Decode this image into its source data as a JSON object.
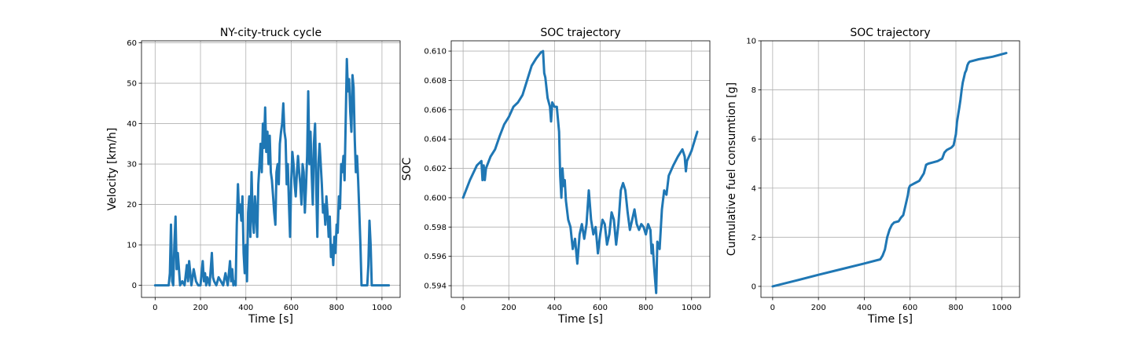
{
  "chart_data": [
    {
      "type": "line",
      "title": "NY-city-truck cycle",
      "xlabel": "Time [s]",
      "ylabel": "Velocity [km/h]",
      "xlim": [
        -60,
        1080
      ],
      "ylim": [
        -3,
        60.5
      ],
      "xticks": [
        0,
        200,
        400,
        600,
        800,
        1000
      ],
      "yticks": [
        0,
        10,
        20,
        30,
        40,
        50,
        60
      ],
      "ytick_labels": [
        "0",
        "10",
        "20",
        "30",
        "40",
        "50",
        "60"
      ],
      "grid": true,
      "color": "#1f77b4",
      "series": [
        {
          "x": [
            0,
            20,
            40,
            60,
            65,
            70,
            75,
            80,
            85,
            90,
            95,
            100,
            110,
            120,
            130,
            140,
            145,
            150,
            160,
            170,
            180,
            190,
            200,
            210,
            215,
            220,
            225,
            230,
            240,
            250,
            255,
            260,
            270,
            280,
            300,
            310,
            320,
            330,
            335,
            340,
            345,
            350,
            355,
            360,
            365,
            370,
            375,
            380,
            385,
            390,
            395,
            400,
            405,
            410,
            415,
            420,
            425,
            430,
            435,
            440,
            445,
            450,
            455,
            460,
            465,
            470,
            475,
            480,
            485,
            490,
            495,
            500,
            505,
            510,
            515,
            520,
            525,
            530,
            535,
            540,
            545,
            550,
            555,
            560,
            565,
            570,
            575,
            580,
            585,
            590,
            595,
            600,
            605,
            610,
            615,
            620,
            625,
            630,
            635,
            640,
            645,
            650,
            655,
            660,
            665,
            670,
            675,
            680,
            685,
            690,
            695,
            700,
            705,
            710,
            715,
            720,
            725,
            730,
            735,
            740,
            745,
            750,
            755,
            760,
            765,
            770,
            775,
            780,
            785,
            790,
            795,
            800,
            805,
            810,
            815,
            820,
            825,
            830,
            835,
            840,
            845,
            850,
            855,
            860,
            865,
            870,
            875,
            880,
            885,
            890,
            895,
            900,
            905,
            910,
            915,
            920,
            925,
            930,
            935,
            940,
            945,
            950,
            955,
            960,
            965,
            970,
            975,
            980,
            1000,
            1030
          ],
          "y": [
            0,
            0,
            0,
            0,
            3,
            15,
            1,
            0,
            10,
            17,
            4,
            8,
            0,
            1,
            0,
            5,
            1,
            6,
            0,
            4,
            1,
            0,
            0,
            6,
            1,
            3,
            0,
            2,
            0,
            8,
            2,
            1,
            0,
            2,
            0,
            3,
            0,
            6,
            1,
            4,
            0,
            1,
            0,
            15,
            25,
            18,
            20,
            16,
            22,
            8,
            3,
            10,
            1,
            18,
            22,
            12,
            28,
            17,
            13,
            22,
            18,
            12,
            25,
            30,
            35,
            28,
            40,
            34,
            44,
            33,
            38,
            30,
            37,
            28,
            26,
            22,
            18,
            15,
            28,
            30,
            25,
            35,
            38,
            40,
            45,
            38,
            36,
            25,
            30,
            20,
            12,
            26,
            33,
            30,
            25,
            22,
            28,
            32,
            28,
            25,
            20,
            30,
            28,
            18,
            24,
            32,
            48,
            30,
            38,
            28,
            20,
            35,
            40,
            25,
            12,
            30,
            35,
            30,
            25,
            18,
            20,
            15,
            22,
            18,
            12,
            17,
            7,
            10,
            5,
            12,
            8,
            15,
            13,
            22,
            19,
            30,
            28,
            32,
            26,
            40,
            56,
            48,
            51,
            43,
            38,
            52,
            49,
            36,
            28,
            32,
            26,
            18,
            10,
            0,
            0,
            0,
            0,
            0,
            0,
            5,
            16,
            10,
            0,
            0,
            0,
            0,
            0,
            0,
            0,
            0
          ],
          "name": ""
        }
      ]
    },
    {
      "type": "line",
      "title": "SOC trajectory",
      "xlabel": "Time [s]",
      "ylabel": "SOC",
      "xlim": [
        -52,
        1080
      ],
      "ylim": [
        0.5932,
        0.6107
      ],
      "xticks": [
        0,
        200,
        400,
        600,
        800,
        1000
      ],
      "yticks": [
        0.594,
        0.596,
        0.598,
        0.6,
        0.602,
        0.604,
        0.606,
        0.608,
        0.61
      ],
      "ytick_labels": [
        "0.594",
        "0.596",
        "0.598",
        "0.600",
        "0.602",
        "0.604",
        "0.606",
        "0.608",
        "0.610"
      ],
      "grid": true,
      "color": "#1f77b4",
      "series": [
        {
          "x": [
            0,
            30,
            60,
            80,
            85,
            90,
            95,
            100,
            120,
            140,
            160,
            180,
            200,
            220,
            240,
            260,
            280,
            300,
            320,
            340,
            350,
            355,
            360,
            370,
            380,
            385,
            390,
            400,
            410,
            420,
            425,
            430,
            435,
            440,
            445,
            450,
            460,
            470,
            480,
            490,
            500,
            510,
            520,
            530,
            540,
            550,
            560,
            570,
            580,
            590,
            600,
            610,
            620,
            630,
            640,
            650,
            660,
            670,
            680,
            690,
            700,
            710,
            720,
            730,
            740,
            750,
            760,
            770,
            780,
            790,
            800,
            810,
            820,
            825,
            830,
            835,
            840,
            845,
            850,
            860,
            870,
            880,
            890,
            900,
            920,
            940,
            960,
            970,
            975,
            980,
            1000,
            1025
          ],
          "y": [
            0.6,
            0.6012,
            0.6022,
            0.6025,
            0.6012,
            0.6022,
            0.6012,
            0.602,
            0.6028,
            0.6033,
            0.6042,
            0.605,
            0.6055,
            0.6062,
            0.6065,
            0.607,
            0.608,
            0.609,
            0.6095,
            0.6099,
            0.61,
            0.6085,
            0.6082,
            0.6068,
            0.6062,
            0.6052,
            0.6065,
            0.6062,
            0.6062,
            0.6045,
            0.6015,
            0.6,
            0.602,
            0.6008,
            0.6012,
            0.5998,
            0.5985,
            0.598,
            0.5965,
            0.5972,
            0.5955,
            0.5975,
            0.5982,
            0.5972,
            0.5982,
            0.6005,
            0.5985,
            0.5975,
            0.598,
            0.5962,
            0.5975,
            0.5985,
            0.5982,
            0.5968,
            0.5975,
            0.599,
            0.5985,
            0.5968,
            0.5982,
            0.6005,
            0.601,
            0.6005,
            0.599,
            0.5978,
            0.5985,
            0.5992,
            0.5982,
            0.5978,
            0.5982,
            0.598,
            0.5975,
            0.5982,
            0.5978,
            0.5962,
            0.5968,
            0.5955,
            0.5945,
            0.5935,
            0.597,
            0.5965,
            0.5992,
            0.6005,
            0.6002,
            0.6015,
            0.6022,
            0.6028,
            0.6033,
            0.6028,
            0.6018,
            0.6025,
            0.6032,
            0.6045
          ],
          "name": ""
        }
      ]
    },
    {
      "type": "line",
      "title": "SOC trajectory",
      "xlabel": "Time [s]",
      "ylabel": "Cumulative fuel consumtion [g]",
      "xlim": [
        -51,
        1078
      ],
      "ylim": [
        -0.45,
        10
      ],
      "xticks": [
        0,
        200,
        400,
        600,
        800,
        1000
      ],
      "yticks": [
        0,
        2,
        4,
        6,
        8,
        10
      ],
      "ytick_labels": [
        "0",
        "2",
        "4",
        "6",
        "8",
        "10"
      ],
      "grid": true,
      "color": "#1f77b4",
      "series": [
        {
          "x": [
            0,
            100,
            200,
            300,
            400,
            470,
            480,
            490,
            500,
            510,
            520,
            530,
            550,
            560,
            570,
            580,
            590,
            595,
            600,
            610,
            620,
            640,
            650,
            660,
            670,
            680,
            700,
            720,
            740,
            750,
            760,
            780,
            790,
            800,
            805,
            810,
            815,
            820,
            825,
            830,
            835,
            840,
            845,
            850,
            855,
            860,
            900,
            960,
            1020
          ],
          "y": [
            0,
            0.23,
            0.47,
            0.7,
            0.93,
            1.1,
            1.25,
            1.5,
            2.0,
            2.3,
            2.5,
            2.6,
            2.65,
            2.8,
            2.9,
            3.3,
            3.7,
            4.0,
            4.1,
            4.15,
            4.2,
            4.3,
            4.45,
            4.6,
            4.95,
            5.0,
            5.05,
            5.1,
            5.2,
            5.45,
            5.55,
            5.65,
            5.75,
            6.2,
            6.7,
            7.0,
            7.3,
            7.6,
            8.0,
            8.3,
            8.5,
            8.7,
            8.8,
            9.0,
            9.1,
            9.15,
            9.25,
            9.35,
            9.5
          ],
          "name": ""
        }
      ]
    }
  ]
}
